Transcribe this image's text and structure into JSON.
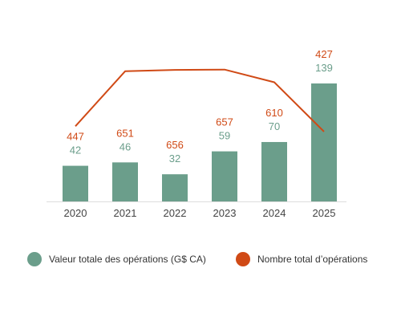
{
  "chart_data": {
    "type": "bar+line",
    "categories": [
      "2020",
      "2021",
      "2022",
      "2023",
      "2024",
      "2025"
    ],
    "series": [
      {
        "name": "Valeur totale des opérations (G$ CA)",
        "type": "bar",
        "color": "#6b9e8b",
        "values": [
          42,
          46,
          32,
          59,
          70,
          139
        ]
      },
      {
        "name": "Nombre total d’opérations",
        "type": "line",
        "color": "#d04a16",
        "values": [
          447,
          651,
          656,
          657,
          610,
          427
        ]
      }
    ],
    "title": "",
    "xlabel": "",
    "ylabel": "",
    "ylim_bar": [
      0,
      180
    ],
    "ylim_line": [
      0,
      700
    ],
    "grid": false,
    "legend_position": "bottom"
  },
  "legend": {
    "item1": "Valeur totale des opérations (G$ CA)",
    "item2": "Nombre total d’opérations"
  }
}
